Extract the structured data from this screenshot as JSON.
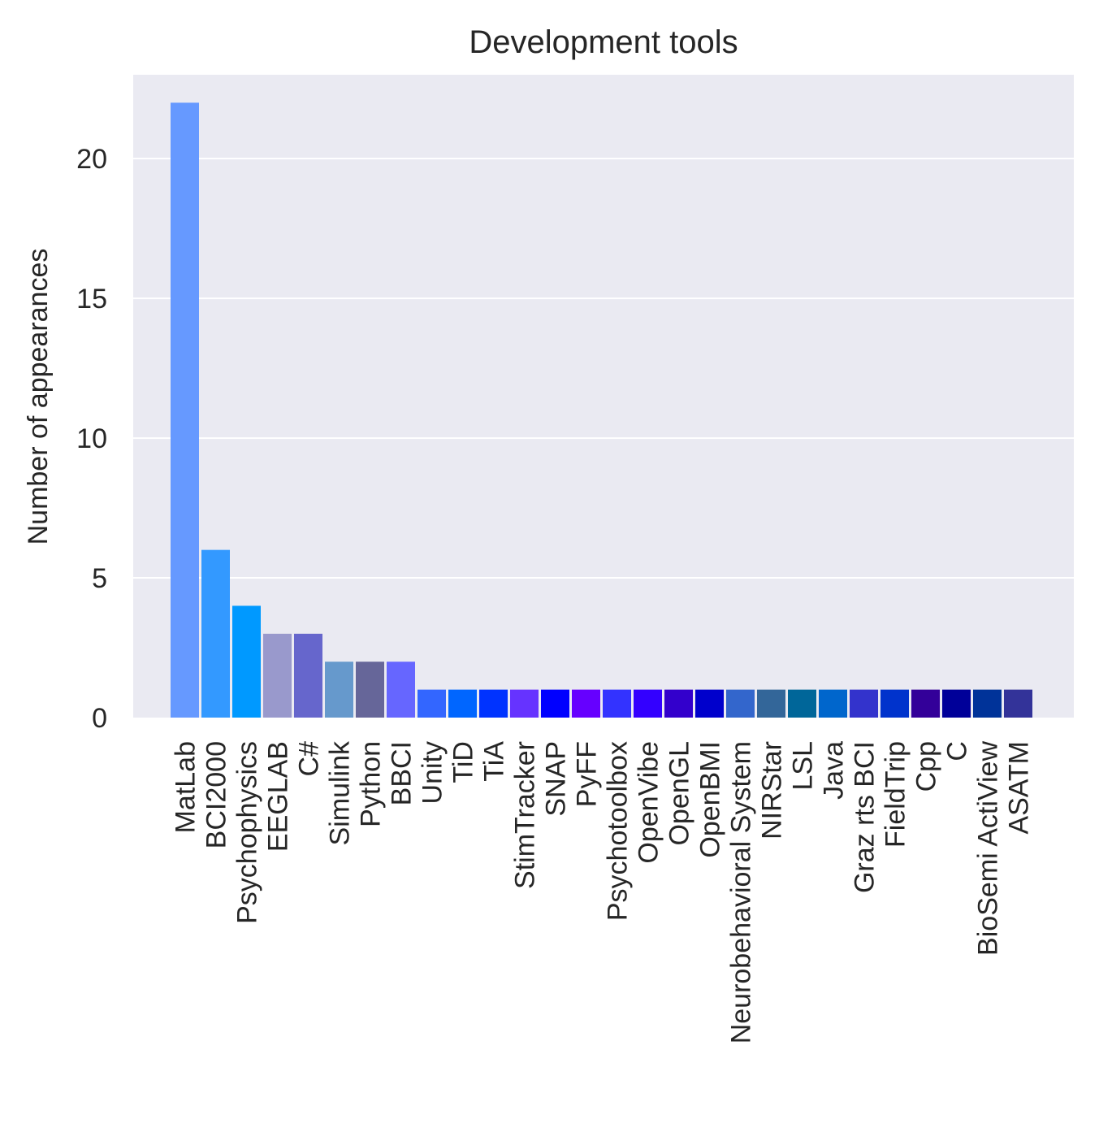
{
  "chart_data": {
    "type": "bar",
    "title": "Development tools",
    "xlabel": "",
    "ylabel": "Number of appearances",
    "ylim": [
      0,
      23
    ],
    "yticks": [
      0,
      5,
      10,
      15,
      20
    ],
    "grid": true,
    "legend": "none",
    "background_color": "#EAEAF2",
    "categories": [
      "MatLab",
      "BCI2000",
      "Psychophysics",
      "EEGLAB",
      "C#",
      "Simulink",
      "Python",
      "BBCI",
      "Unity",
      "TiD",
      "TiA",
      "StimTracker",
      "SNAP",
      "PyFF",
      "Psychotoolbox",
      "OpenVibe",
      "OpenGL",
      "OpenBMI",
      "Neurobehavioral System",
      "NIRStar",
      "LSL",
      "Java",
      "Graz rts BCI",
      "FieldTrip",
      "Cpp",
      "C",
      "BioSemi ActiView",
      "ASATM"
    ],
    "values": [
      22,
      6,
      4,
      3,
      3,
      2,
      2,
      2,
      1,
      1,
      1,
      1,
      1,
      1,
      1,
      1,
      1,
      1,
      1,
      1,
      1,
      1,
      1,
      1,
      1,
      1,
      1,
      1
    ],
    "colors": [
      "#6699FF",
      "#3399FF",
      "#0099FF",
      "#9999CC",
      "#6666CC",
      "#6699CC",
      "#666699",
      "#6666FF",
      "#3366FF",
      "#0066FF",
      "#0033FF",
      "#6633FF",
      "#0000FF",
      "#6600FF",
      "#3333FF",
      "#3300FF",
      "#3300CC",
      "#0000CC",
      "#3366CC",
      "#336699",
      "#006699",
      "#0066CC",
      "#3333CC",
      "#0033CC",
      "#330099",
      "#000099",
      "#003399",
      "#333399"
    ]
  }
}
